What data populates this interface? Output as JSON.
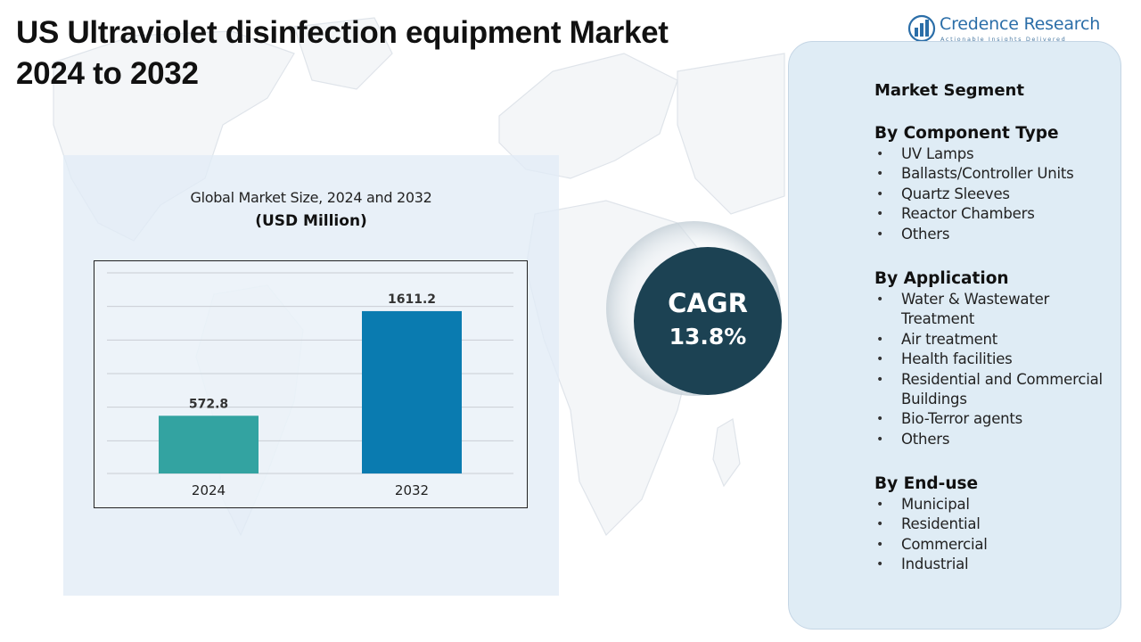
{
  "title": {
    "line1": "US Ultraviolet disinfection equipment Market",
    "line2": "2024 to 2032"
  },
  "logo": {
    "name": "Credence Research",
    "tagline": "Actionable Insights Delivered",
    "icon": "bar-chart-logo-icon",
    "color": "#2b6ea8"
  },
  "chart_data": {
    "type": "bar",
    "title": "Global Market Size, 2024 and 2032",
    "unit_label": "(USD Million)",
    "categories": [
      "2024",
      "2032"
    ],
    "values": [
      572.8,
      1611.2
    ],
    "value_labels": [
      "572.8",
      "1611.2"
    ],
    "colors": [
      "#33a3a1",
      "#0a7bb0"
    ],
    "ylim": [
      0,
      2000
    ],
    "grid": true,
    "legend": "none"
  },
  "cagr": {
    "label": "CAGR",
    "value": "13.8%",
    "color": "#1c4253"
  },
  "segments": {
    "title": "Market Segment",
    "groups": [
      {
        "heading": "By Component Type",
        "items": [
          "UV Lamps",
          "Ballasts/Controller Units",
          "Quartz Sleeves",
          "Reactor Chambers",
          "Others"
        ]
      },
      {
        "heading": "By Application",
        "items": [
          "Water & Wastewater Treatment",
          "Air treatment",
          "Health facilities",
          "Residential and Commercial Buildings",
          "Bio-Terror agents",
          "Others"
        ]
      },
      {
        "heading": "By End-use",
        "items": [
          "Municipal",
          "Residential",
          "Commercial",
          "Industrial"
        ]
      }
    ]
  }
}
